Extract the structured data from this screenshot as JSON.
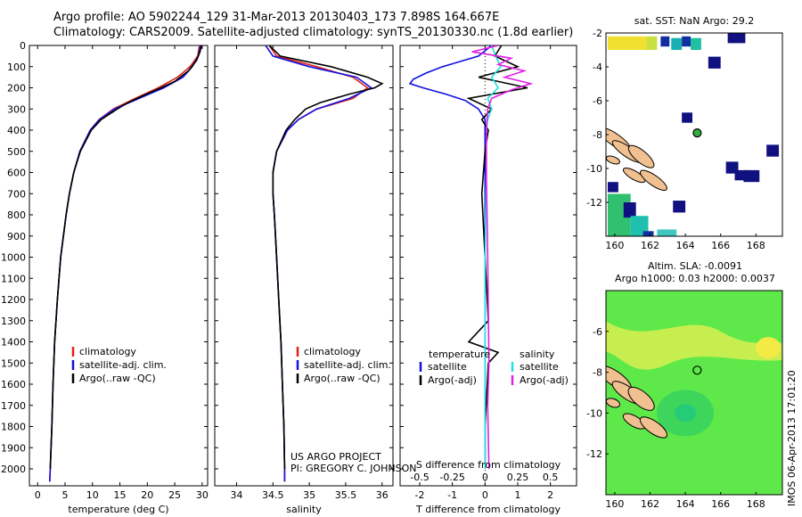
{
  "header": {
    "line1": "Argo profile: AO 5902244_129 31-Mar-2013 20130403_173 7.898S 164.667E",
    "line2": "Climatology: CARS2009. Satellite-adjusted climatology: synTS_20130330.nc (1.8d earlier)"
  },
  "stamp": "IMOS 06-Apr-2013 17:01:20",
  "colors": {
    "red": "#e0201a",
    "blue": "#1010e0",
    "black": "#000000",
    "cyan": "#20e0e0",
    "magenta": "#e020e0"
  },
  "chart_data": [
    {
      "type": "line",
      "id": "temperature",
      "xlabel": "temperature (deg C)",
      "ylabel": "",
      "xlim": [
        -1.5,
        31
      ],
      "ylim": [
        2080,
        0
      ],
      "xticks": [
        0,
        5,
        10,
        15,
        20,
        25,
        30
      ],
      "yticks": [
        0,
        100,
        200,
        300,
        400,
        500,
        600,
        700,
        800,
        900,
        1000,
        1100,
        1200,
        1300,
        1400,
        1500,
        1600,
        1700,
        1800,
        1900,
        2000
      ],
      "legend": [
        "climatology",
        "satellite-adj. clim.",
        "Argo(..raw -QC)"
      ],
      "series": [
        {
          "name": "climatology",
          "color": "red",
          "depth": [
            0,
            50,
            100,
            150,
            200,
            250,
            300,
            350,
            400,
            500,
            600,
            700,
            800,
            1000,
            1200,
            1400,
            1600,
            1800,
            2000,
            2060
          ],
          "values": [
            29.5,
            29.2,
            27.8,
            25.5,
            22,
            17.8,
            13.8,
            11.2,
            9.6,
            7.7,
            6.6,
            5.8,
            5.2,
            4.2,
            3.6,
            3.1,
            2.8,
            2.6,
            2.3,
            2.2
          ]
        },
        {
          "name": "satellite-adj. clim.",
          "color": "blue",
          "depth": [
            0,
            50,
            100,
            150,
            200,
            250,
            300,
            350,
            400,
            500,
            600,
            700,
            800,
            1000,
            1200,
            1400,
            1600,
            1800,
            2000,
            2060
          ],
          "values": [
            29.7,
            29.3,
            28.2,
            26.5,
            23,
            18.5,
            14,
            11.3,
            9.6,
            7.7,
            6.6,
            5.8,
            5.2,
            4.2,
            3.6,
            3.1,
            2.8,
            2.6,
            2.3,
            2.2
          ]
        },
        {
          "name": "Argo(..raw -QC)",
          "color": "black",
          "depth": [
            0,
            30,
            70,
            120,
            170,
            200,
            230,
            270,
            300,
            350,
            400,
            500,
            600,
            700,
            800,
            1000,
            1200,
            1400,
            1600,
            1800,
            2000
          ],
          "values": [
            29.9,
            29.6,
            29.0,
            27.5,
            25,
            22.5,
            19.8,
            16.5,
            14.5,
            11.6,
            9.8,
            7.8,
            6.6,
            5.8,
            5.2,
            4.2,
            3.6,
            3.1,
            2.8,
            2.6,
            2.3
          ]
        }
      ]
    },
    {
      "type": "line",
      "id": "salinity",
      "xlabel": "salinity",
      "ylabel": "",
      "xlim": [
        33.7,
        36.15
      ],
      "ylim": [
        2080,
        0
      ],
      "xticks": [
        34,
        34.5,
        35,
        35.5,
        36
      ],
      "legend": [
        "climatology",
        "satellite-adj. clim.",
        "Argo(..raw -QC)"
      ],
      "annotation": [
        "US ARGO PROJECT",
        "PI: GREGORY C. JOHNSON"
      ],
      "series": [
        {
          "name": "climatology",
          "color": "red",
          "depth": [
            0,
            50,
            100,
            150,
            200,
            250,
            300,
            350,
            400,
            500,
            600,
            700,
            800,
            1000,
            1200,
            1400,
            1600,
            1800,
            2000,
            2060
          ],
          "values": [
            34.45,
            34.55,
            35.1,
            35.6,
            35.8,
            35.6,
            35.1,
            34.85,
            34.7,
            34.55,
            34.5,
            34.5,
            34.52,
            34.55,
            34.58,
            34.61,
            34.63,
            34.65,
            34.66,
            34.66
          ]
        },
        {
          "name": "satellite-adj. clim.",
          "color": "blue",
          "depth": [
            0,
            50,
            100,
            150,
            200,
            250,
            300,
            350,
            400,
            500,
            600,
            700,
            800,
            1000,
            1200,
            1400,
            1600,
            1800,
            2000,
            2060
          ],
          "values": [
            34.4,
            34.5,
            35.0,
            35.65,
            35.85,
            35.55,
            35.1,
            34.85,
            34.7,
            34.55,
            34.5,
            34.5,
            34.52,
            34.55,
            34.58,
            34.61,
            34.63,
            34.65,
            34.66,
            34.66
          ]
        },
        {
          "name": "Argo(..raw -QC)",
          "color": "black",
          "depth": [
            0,
            50,
            100,
            150,
            180,
            200,
            230,
            270,
            300,
            350,
            400,
            500,
            600,
            700,
            800,
            1000,
            1200,
            1400,
            1600,
            1800,
            2000
          ],
          "values": [
            34.45,
            34.6,
            35.3,
            35.8,
            36.0,
            35.9,
            35.55,
            35.15,
            34.95,
            34.8,
            34.68,
            34.55,
            34.5,
            34.5,
            34.52,
            34.55,
            34.58,
            34.61,
            34.63,
            34.65,
            34.66
          ]
        }
      ]
    },
    {
      "type": "line",
      "id": "difference",
      "xlabel": "T difference from climatology",
      "title_bottom": "S difference from climatology",
      "xlim": [
        -2.6,
        2.8
      ],
      "ylim": [
        2080,
        0
      ],
      "xticks_T": [
        -2,
        -1,
        0,
        1,
        2
      ],
      "xticks_S": [
        -0.5,
        -0.25,
        0,
        0.25,
        0.5
      ],
      "legend_left_title": "temperature",
      "legend_right_title": "salinity",
      "legend": [
        "satellite",
        "Argo(-adj)",
        "satellite",
        "Argo(-adj)"
      ],
      "series": [
        {
          "name": "temperature satellite",
          "color": "blue",
          "depth": [
            0,
            50,
            100,
            130,
            160,
            180,
            200,
            230,
            260,
            300,
            350,
            400,
            500,
            600,
            800,
            1000,
            1500,
            2000
          ],
          "values": [
            0.2,
            -0.2,
            -1.3,
            -1.8,
            -2.2,
            -2.3,
            -1.9,
            -1.2,
            -0.6,
            -0.2,
            0,
            0,
            0,
            0,
            0,
            0,
            0,
            0
          ]
        },
        {
          "name": "temperature Argo(-adj)",
          "color": "black",
          "depth": [
            0,
            50,
            100,
            150,
            200,
            250,
            300,
            350,
            400,
            500,
            700,
            1000,
            1300,
            1400,
            1450,
            1500,
            1800,
            2000
          ],
          "values": [
            0.5,
            0.3,
            1.0,
            -0.2,
            1.3,
            -0.5,
            0.2,
            -0.1,
            0.1,
            0,
            -0.1,
            0,
            0.1,
            -0.5,
            0.4,
            0.1,
            0,
            0
          ]
        },
        {
          "name": "salinity satellite",
          "color": "cyan",
          "depth": [
            0,
            50,
            100,
            150,
            200,
            250,
            300,
            350,
            400,
            600,
            1000,
            1500,
            2000
          ],
          "values": [
            0.05,
            0.08,
            0.12,
            0.05,
            0.1,
            0.02,
            0.05,
            0.02,
            0.01,
            0.01,
            0,
            0,
            0
          ]
        },
        {
          "name": "salinity Argo(-adj)",
          "color": "magenta",
          "depth": [
            0,
            30,
            60,
            90,
            120,
            150,
            180,
            210,
            250,
            300,
            400,
            600,
            1000,
            1500,
            1700,
            2000
          ],
          "values": [
            0.1,
            -0.1,
            0.2,
            0.1,
            0.3,
            0.15,
            0.35,
            0.2,
            0.05,
            0.02,
            0.01,
            0.01,
            0.02,
            0.03,
            0.02,
            0.03
          ]
        }
      ]
    },
    {
      "type": "heatmap",
      "id": "sst-map",
      "title": "sat. SST: NaN Argo: 29.2",
      "xlim": [
        159.5,
        169.5
      ],
      "ylim": [
        -14,
        -2
      ],
      "xticks": [
        160,
        162,
        164,
        166,
        168
      ],
      "yticks": [
        -2,
        -4,
        -6,
        -8,
        -10,
        -12
      ],
      "argo_position": [
        164.67,
        -7.9
      ]
    },
    {
      "type": "heatmap",
      "id": "sla-map",
      "title": "Altim. SLA: -0.0091",
      "subtitle": "Argo h1000: 0.03 h2000: 0.0037",
      "xlim": [
        159.5,
        169.5
      ],
      "ylim": [
        -14,
        -4
      ],
      "xticks": [
        160,
        162,
        164,
        166,
        168
      ],
      "yticks": [
        -6,
        -8,
        -10,
        -12
      ],
      "argo_position": [
        164.67,
        -7.9
      ]
    }
  ]
}
